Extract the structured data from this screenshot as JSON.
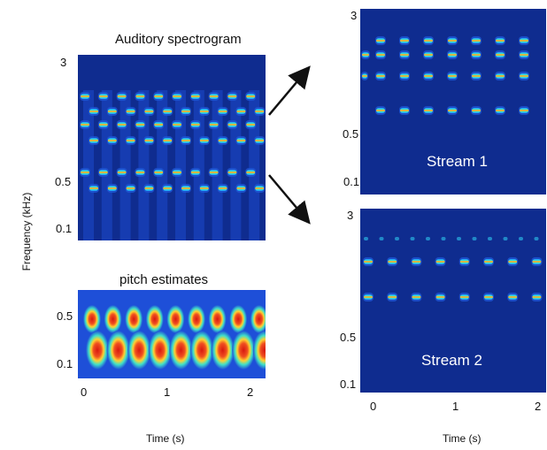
{
  "panels": {
    "spectrogram": {
      "title": "Auditory spectrogram",
      "yticks": [
        "3",
        "0.5",
        "0.1"
      ]
    },
    "pitch": {
      "title": "pitch estimates",
      "yticks": [
        "0.5",
        "0.1"
      ],
      "xticks": [
        "0",
        "1",
        "2"
      ]
    },
    "stream1": {
      "label": "Stream 1",
      "yticks": [
        "3",
        "0.5",
        "0.1"
      ]
    },
    "stream2": {
      "label": "Stream 2",
      "yticks": [
        "3",
        "0.5",
        "0.1"
      ],
      "xticks": [
        "0",
        "1",
        "2"
      ]
    }
  },
  "axes": {
    "ylabel": "Frequency (kHz)",
    "xlabel_left": "Time (s)",
    "xlabel_right": "Time (s)"
  },
  "colors": {
    "background": "#0f2c8f",
    "pitch_background": "#1e4fd8",
    "arrow": "#111111"
  }
}
